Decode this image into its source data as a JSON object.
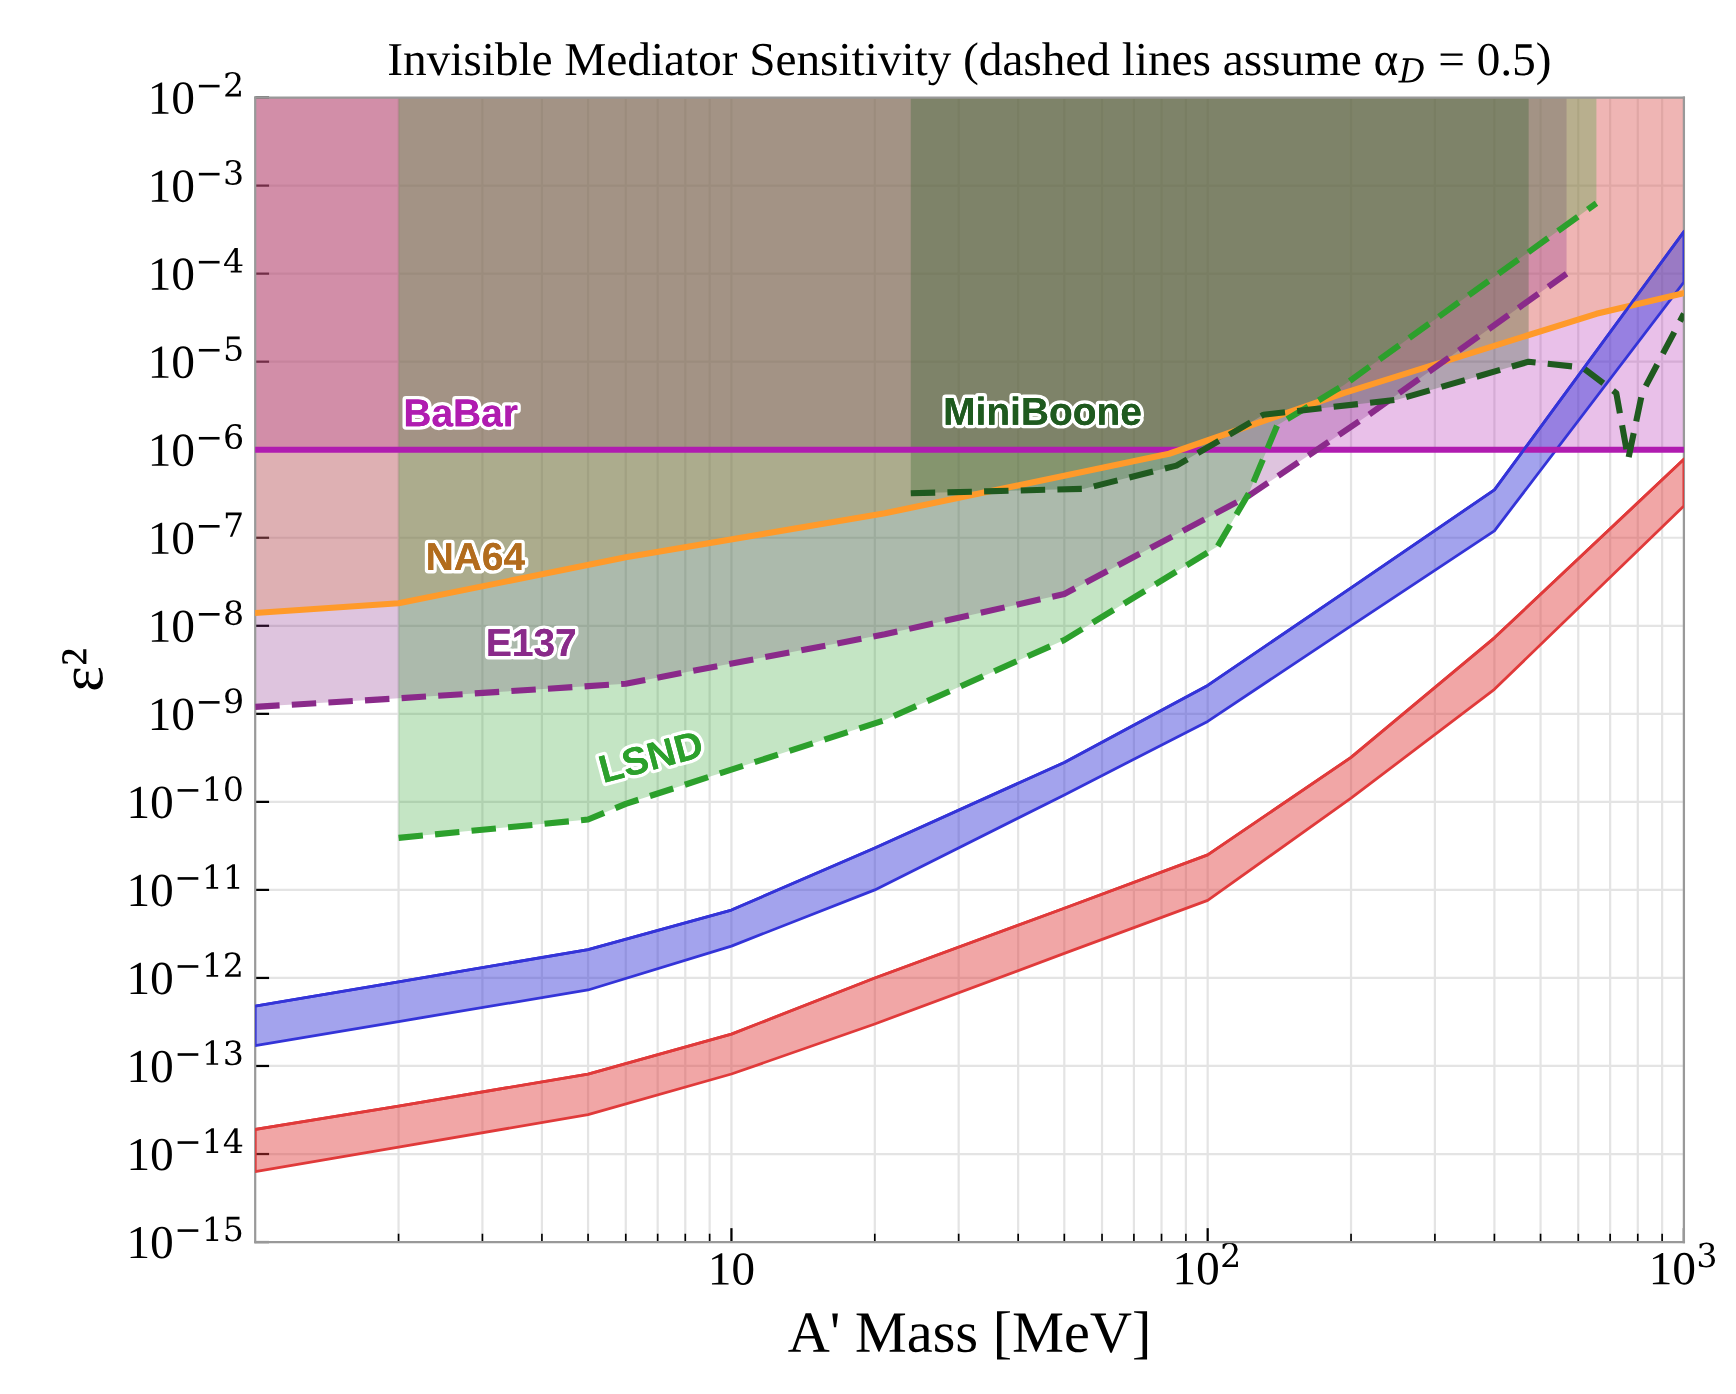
{
  "chart_data": {
    "type": "line",
    "title": "Invisible Mediator Sensitivity (dashed lines assume α$_{D}$ = 0.5)",
    "xlabel": "A' Mass [MeV]",
    "ylabel": "ε²",
    "log": "xy",
    "grid": true,
    "legend": false,
    "xlim": [
      1,
      1000
    ],
    "xticks": [
      {
        "value": 10,
        "label": "10"
      },
      {
        "value": 100,
        "label": "10$^{2}$"
      },
      {
        "value": 1000,
        "label": "10$^{3}$"
      }
    ],
    "ylim": [
      1e-15,
      0.01
    ],
    "yticks": [
      {
        "value": 1e-15,
        "label": "10$^{−15}$"
      },
      {
        "value": 1e-14,
        "label": "10$^{−14}$"
      },
      {
        "value": 1e-13,
        "label": "10$^{−13}$"
      },
      {
        "value": 1e-12,
        "label": "10$^{−12}$"
      },
      {
        "value": 1e-11,
        "label": "10$^{−11}$"
      },
      {
        "value": 1e-10,
        "label": "10$^{−10}$"
      },
      {
        "value": 1e-09,
        "label": "10$^{−9}$"
      },
      {
        "value": 1e-08,
        "label": "10$^{−8}$"
      },
      {
        "value": 1e-07,
        "label": "10$^{−7}$"
      },
      {
        "value": 1e-06,
        "label": "10$^{−6}$"
      },
      {
        "value": 1e-05,
        "label": "10$^{−5}$"
      },
      {
        "value": 0.0001,
        "label": "10$^{−4}$"
      },
      {
        "value": 0.001,
        "label": "10$^{−3}$"
      },
      {
        "value": 0.01,
        "label": "10$^{−2}$"
      }
    ],
    "series": [
      {
        "name": "BaBar",
        "line_style": "solid",
        "color": "#b01cb0",
        "x": [
          1,
          1000
        ],
        "values": [
          1e-06,
          1e-06
        ],
        "lower": [
          1e-06,
          1e-06
        ],
        "upper": [
          0.01,
          0.01
        ]
      },
      {
        "name": "NA64",
        "line_style": "solid",
        "color": "#ff9a2a",
        "x": [
          1,
          2,
          6,
          21,
          83,
          193,
          655,
          1000
        ],
        "values": [
          1.4e-08,
          1.8e-08,
          6e-08,
          1.9e-07,
          9e-07,
          4.4e-06,
          3.5e-05,
          6e-05
        ],
        "lower": [
          1.4e-08,
          1.8e-08,
          6e-08,
          1.9e-07,
          9e-07,
          4.4e-06,
          3.5e-05,
          6e-05
        ],
        "upper": [
          0.01,
          0.01,
          0.01,
          0.01,
          0.01,
          0.01,
          0.01,
          0.01
        ]
      },
      {
        "name": "E137",
        "line_style": "dashed",
        "color": "#8a2a8a",
        "x": [
          1,
          2,
          6,
          21,
          50,
          122,
          218,
          567
        ],
        "values": [
          1.2e-09,
          1.5e-09,
          2.2e-09,
          8e-09,
          2.3e-08,
          3e-07,
          2.5e-06,
          0.0001
        ],
        "lower": [
          1.2e-09,
          1.5e-09,
          2.2e-09,
          8e-09,
          2.3e-08,
          3e-07,
          2.5e-06,
          0.0001
        ],
        "upper": [
          0.01,
          0.01,
          0.01,
          0.01,
          0.01,
          0.01,
          0.01,
          0.01
        ]
      },
      {
        "name": "LSND",
        "line_style": "dashed",
        "color": "#2ca02c",
        "x": [
          2,
          5,
          6,
          21,
          50,
          105,
          122,
          140,
          193,
          655
        ],
        "values": [
          3.9e-11,
          6.3e-11,
          9.5e-11,
          8.5e-10,
          6.9e-09,
          8e-08,
          3.2e-07,
          1.9e-06,
          5.4e-06,
          0.00063
        ],
        "lower": [
          3.9e-11,
          6.3e-11,
          9.5e-11,
          8.5e-10,
          6.9e-09,
          8e-08,
          3.2e-07,
          1.9e-06,
          5.4e-06,
          0.00063
        ],
        "upper": [
          0.01,
          0.01,
          0.01,
          0.01,
          0.01,
          0.01,
          0.01,
          0.01,
          0.01,
          0.01
        ]
      },
      {
        "name": "MiniBoone",
        "line_style": "dashed",
        "color": "#1f5a1f",
        "x": [
          23.8,
          55,
          86,
          131,
          250,
          472,
          612,
          721,
          764,
          817,
          1000
        ],
        "values": [
          3.2e-07,
          3.6e-07,
          6.6e-07,
          2.5e-06,
          3.7e-06,
          1e-05,
          8.6e-06,
          4.4e-06,
          7.8e-07,
          4.4e-06,
          3.5e-05
        ],
        "lower": [
          3.2e-07,
          3.6e-07,
          6.6e-07,
          2.5e-06,
          3.7e-06,
          1e-05,
          null,
          null,
          null,
          null,
          null
        ],
        "upper": [
          0.01,
          0.01,
          0.01,
          0.01,
          0.01,
          0.01,
          null,
          null,
          null,
          null,
          null
        ]
      },
      {
        "color": "#3434d8",
        "x": [
          1,
          2,
          5,
          10,
          20,
          50,
          100,
          200,
          400,
          1000
        ],
        "values": [
          4.8e-13,
          9e-13,
          2.1e-12,
          5.9e-12,
          3e-11,
          2.8e-10,
          2.1e-09,
          2.7e-08,
          3.5e-07,
          0.0003
        ],
        "upper": [
          4.8e-13,
          9e-13,
          2.1e-12,
          5.9e-12,
          3e-11,
          2.8e-10,
          2.1e-09,
          2.7e-08,
          3.5e-07,
          0.0003
        ],
        "lower": [
          1.7e-13,
          3.2e-13,
          7.3e-13,
          2.3e-12,
          1e-11,
          1.2e-10,
          8.2e-10,
          1e-08,
          1.2e-07,
          8e-05
        ]
      },
      {
        "color": "#e03a3a",
        "x": [
          1,
          2,
          5,
          10,
          20,
          50,
          100,
          200,
          400,
          1000
        ],
        "values": [
          1.9e-14,
          3.5e-14,
          8.1e-14,
          2.3e-13,
          1e-12,
          6.2e-12,
          2.5e-11,
          3.2e-10,
          7.3e-09,
          7.8e-07
        ],
        "upper": [
          1.9e-14,
          3.5e-14,
          8.1e-14,
          2.3e-13,
          1e-12,
          6.2e-12,
          2.5e-11,
          3.2e-10,
          7.3e-09,
          7.8e-07
        ],
        "lower": [
          6.3e-15,
          1.2e-14,
          2.8e-14,
          8.1e-14,
          3e-13,
          1.9e-12,
          7.6e-12,
          1.1e-10,
          1.9e-09,
          2.3e-07
        ]
      }
    ]
  }
}
